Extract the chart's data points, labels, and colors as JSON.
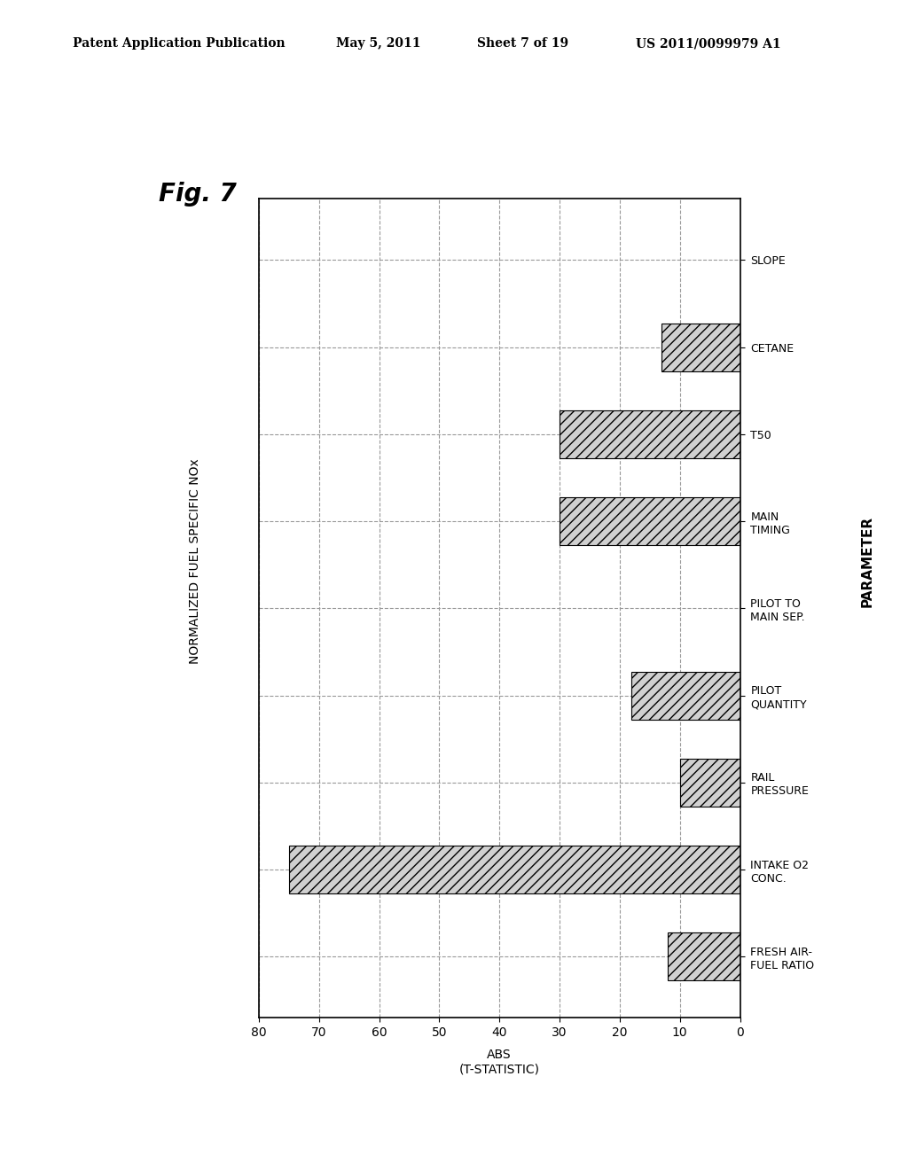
{
  "title": "Fig. 7",
  "xlabel": "ABS\n(T-STATISTIC)",
  "ylabel": "NORMALIZED FUEL SPECIFIC NOx",
  "ylabel2": "PARAMETER",
  "categories": [
    "FRESH AIR-\nFUEL RATIO",
    "INTAKE O2\nCONC.",
    "RAIL\nPRESSURE",
    "PILOT\nQUANTITY",
    "PILOT TO\nMAIN SEP.",
    "MAIN\nTIMING",
    "T50",
    "CETANE",
    "SLOPE"
  ],
  "values": [
    12,
    75,
    10,
    18,
    0,
    30,
    30,
    13,
    0
  ],
  "xlim": [
    0,
    80
  ],
  "xticks": [
    0,
    10,
    20,
    30,
    40,
    50,
    60,
    70,
    80
  ],
  "xtick_labels": [
    "0",
    "10",
    "20",
    "30",
    "40",
    "50",
    "60",
    "70",
    "80"
  ],
  "background_color": "#ffffff",
  "bar_facecolor": "#d0d0d0",
  "hatch": "///",
  "grid_linestyle": "--",
  "grid_color": "#999999",
  "grid_linewidth": 0.8,
  "header_text": "Patent Application Publication",
  "header_date": "May 5, 2011",
  "header_sheet": "Sheet 7 of 19",
  "header_patent": "US 2011/0099979 A1",
  "bar_height": 0.55,
  "title_fontsize": 20,
  "label_fontsize": 10,
  "tick_fontsize": 10,
  "category_fontsize": 9
}
